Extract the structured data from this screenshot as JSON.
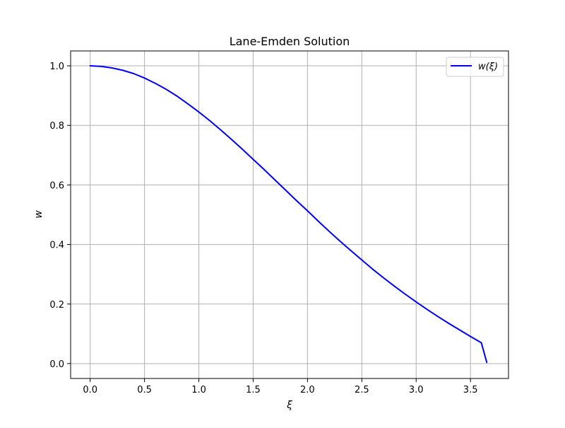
{
  "chart_data": {
    "type": "line",
    "title": "Lane-Emden Solution",
    "xlabel": "ξ",
    "ylabel": "w",
    "xlim": [
      -0.18,
      3.85
    ],
    "ylim": [
      -0.05,
      1.05
    ],
    "xticks": [
      0.0,
      0.5,
      1.0,
      1.5,
      2.0,
      2.5,
      3.0,
      3.5
    ],
    "xtick_labels": [
      "0.0",
      "0.5",
      "1.0",
      "1.5",
      "2.0",
      "2.5",
      "3.0",
      "3.5"
    ],
    "yticks": [
      0.0,
      0.2,
      0.4,
      0.6,
      0.8,
      1.0
    ],
    "ytick_labels": [
      "0.0",
      "0.2",
      "0.4",
      "0.6",
      "0.8",
      "1.0"
    ],
    "grid": true,
    "legend_position": "top-right",
    "series": [
      {
        "name": "w(ξ)",
        "color": "#0000ff",
        "x": [
          0.0,
          0.1,
          0.2,
          0.3,
          0.4,
          0.5,
          0.6,
          0.7,
          0.8,
          0.9,
          1.0,
          1.1,
          1.2,
          1.3,
          1.4,
          1.5,
          1.6,
          1.7,
          1.8,
          1.9,
          2.0,
          2.1,
          2.2,
          2.3,
          2.4,
          2.5,
          2.6,
          2.7,
          2.8,
          2.9,
          3.0,
          3.1,
          3.2,
          3.3,
          3.4,
          3.5,
          3.6,
          3.65
        ],
        "y": [
          1.0,
          0.998,
          0.993,
          0.985,
          0.974,
          0.959,
          0.941,
          0.921,
          0.898,
          0.872,
          0.845,
          0.816,
          0.785,
          0.753,
          0.72,
          0.686,
          0.652,
          0.617,
          0.582,
          0.547,
          0.513,
          0.478,
          0.444,
          0.411,
          0.379,
          0.348,
          0.317,
          0.288,
          0.26,
          0.233,
          0.207,
          0.182,
          0.158,
          0.135,
          0.113,
          0.091,
          0.07,
          0.004
        ]
      }
    ]
  }
}
